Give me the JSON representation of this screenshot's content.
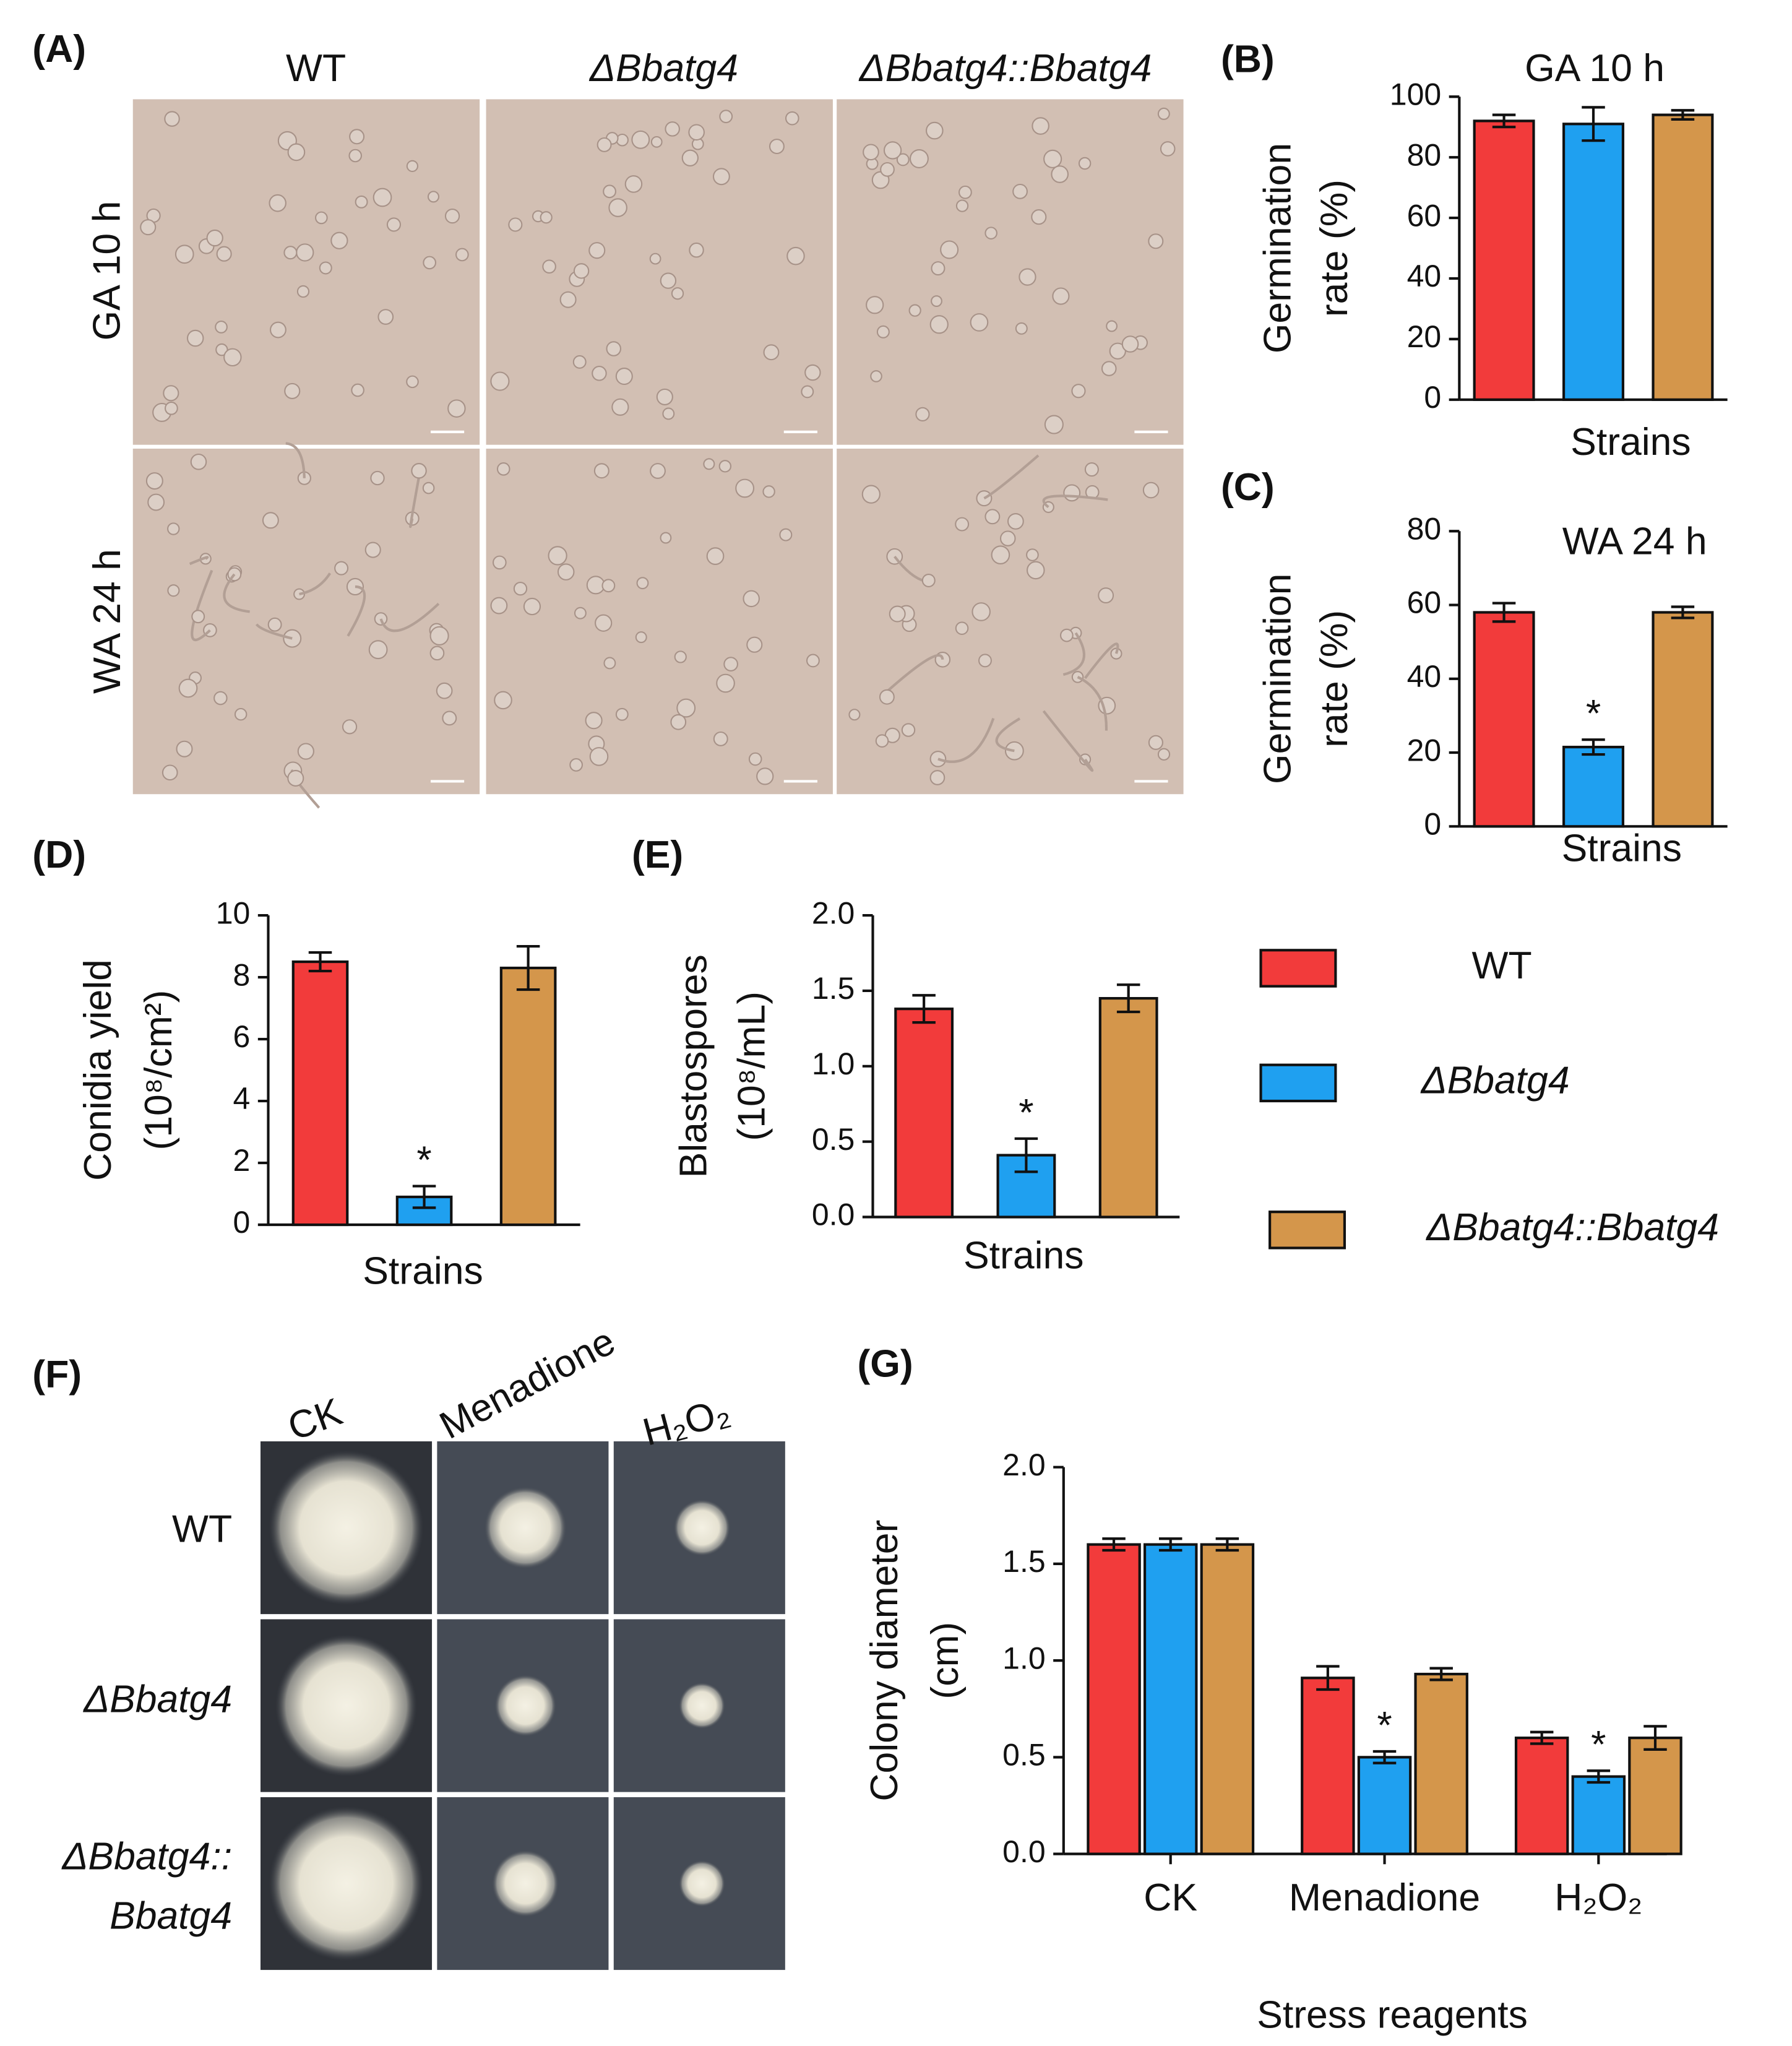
{
  "panel_labels": [
    "(A)",
    "(B)",
    "(C)",
    "(D)",
    "(E)",
    "(F)",
    "(G)"
  ],
  "panel_a": {
    "columns": [
      "WT",
      "ΔBbatg4",
      "ΔBbatg4::Bbatg4"
    ],
    "rows": [
      "GA 10 h",
      "WA 24 h"
    ]
  },
  "panel_f": {
    "columns": [
      "CK",
      "Menadione",
      "H₂O₂"
    ],
    "rows": [
      [
        "WT"
      ],
      [
        "ΔBbatg4"
      ],
      [
        "ΔBbatg4::",
        "Bbatg4"
      ]
    ]
  },
  "legend": {
    "entries": [
      {
        "name": "WT",
        "color": "#f23b3b"
      },
      {
        "name": "ΔBbatg4",
        "color": "#1fa0f0"
      },
      {
        "name": "ΔBbatg4::Bbatg4",
        "color": "#d4964b"
      }
    ]
  },
  "chart_data": [
    {
      "type": "bar",
      "title": "GA 10 h",
      "xlabel": "Strains",
      "ylabel": [
        "Germination",
        "rate (%)"
      ],
      "values": [
        92,
        91,
        94
      ],
      "errors": [
        2,
        5.5,
        1.5
      ],
      "colors": [
        "#f23b3b",
        "#1fa0f0",
        "#d4964b"
      ],
      "ylim": [
        0,
        100
      ],
      "yticks": [
        0,
        20,
        40,
        60,
        80,
        100
      ]
    },
    {
      "type": "bar",
      "title": "WA 24 h",
      "xlabel": "Strains",
      "ylabel": [
        "Germination",
        "rate (%)"
      ],
      "values": [
        58,
        21.5,
        58
      ],
      "errors": [
        2.5,
        2,
        1.5
      ],
      "significance": [
        null,
        "*",
        null
      ],
      "colors": [
        "#f23b3b",
        "#1fa0f0",
        "#d4964b"
      ],
      "ylim": [
        0,
        80
      ],
      "yticks": [
        0,
        20,
        40,
        60,
        80
      ]
    },
    {
      "type": "bar",
      "xlabel": "Strains",
      "ylabel": [
        "Conidia yield",
        "(10⁸/cm²)"
      ],
      "values": [
        8.5,
        0.9,
        8.3
      ],
      "errors": [
        0.3,
        0.35,
        0.7
      ],
      "significance": [
        null,
        "*",
        null
      ],
      "colors": [
        "#f23b3b",
        "#1fa0f0",
        "#d4964b"
      ],
      "ylim": [
        0,
        10
      ],
      "yticks": [
        0,
        2,
        4,
        6,
        8,
        10
      ]
    },
    {
      "type": "bar",
      "xlabel": "Strains",
      "ylabel": [
        "Blastospores",
        "(10⁸/mL)"
      ],
      "values": [
        1.38,
        0.41,
        1.45
      ],
      "errors": [
        0.09,
        0.11,
        0.09
      ],
      "significance": [
        null,
        "*",
        null
      ],
      "colors": [
        "#f23b3b",
        "#1fa0f0",
        "#d4964b"
      ],
      "ylim": [
        0,
        2
      ],
      "yticks": [
        {
          "value": 0,
          "label": "0.0"
        },
        {
          "value": 0.5,
          "label": "0.5"
        },
        {
          "value": 1,
          "label": "1.0"
        },
        {
          "value": 1.5,
          "label": "1.5"
        },
        {
          "value": 2,
          "label": "2.0"
        }
      ]
    },
    {
      "type": "grouped-bar",
      "xlabel": "Stress reagents",
      "ylabel": [
        "Colony diameter",
        "(cm)"
      ],
      "categories": [
        "CK",
        "Menadione",
        "H₂O₂"
      ],
      "series": [
        {
          "color": "#f23b3b",
          "values": [
            1.6,
            0.91,
            0.6
          ],
          "errors": [
            0.03,
            0.06,
            0.03
          ]
        },
        {
          "color": "#1fa0f0",
          "values": [
            1.6,
            0.5,
            0.4
          ],
          "errors": [
            0.03,
            0.03,
            0.03
          ],
          "significance": [
            null,
            "*",
            "*"
          ]
        },
        {
          "color": "#d4964b",
          "values": [
            1.6,
            0.93,
            0.6
          ],
          "errors": [
            0.03,
            0.03,
            0.06
          ]
        }
      ],
      "ylim": [
        0,
        2
      ],
      "yticks": [
        {
          "value": 0,
          "label": "0.0"
        },
        {
          "value": 0.5,
          "label": "0.5"
        },
        {
          "value": 1,
          "label": "1.0"
        },
        {
          "value": 1.5,
          "label": "1.5"
        },
        {
          "value": 2,
          "label": "2.0"
        }
      ]
    }
  ]
}
